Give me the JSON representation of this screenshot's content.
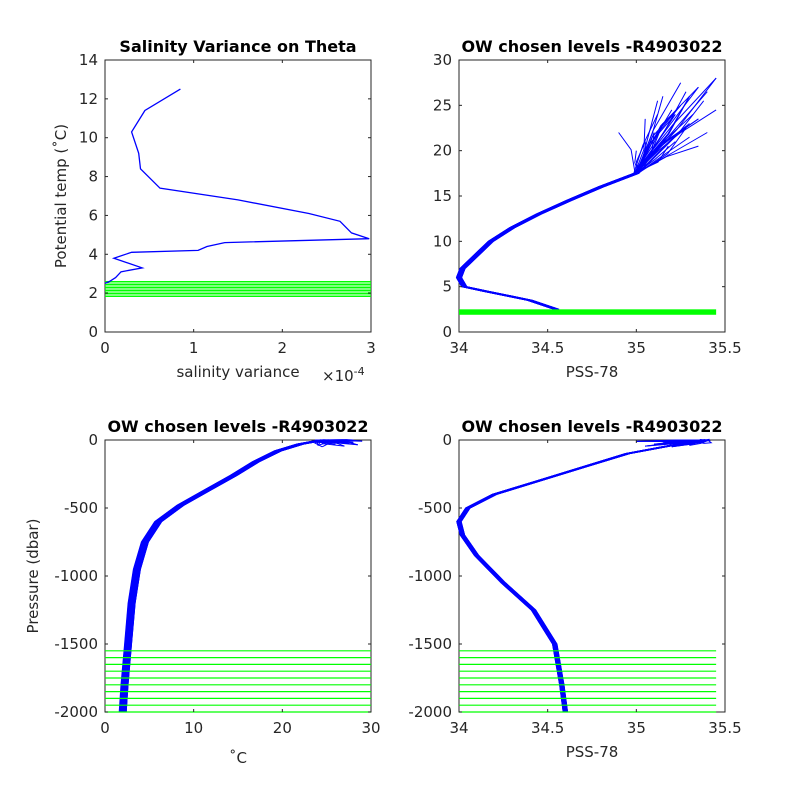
{
  "chart_data": [
    {
      "type": "line",
      "title": "Salinity Variance on Theta",
      "xlabel": "salinity variance",
      "ylabel": "Potential temp (˚C)",
      "x_exponent_label": "×10",
      "x_exponent": "-4",
      "xlim": [
        0,
        3
      ],
      "ylim": [
        0,
        14
      ],
      "xticks": [
        "0",
        "1",
        "2",
        "3"
      ],
      "yticks": [
        "0",
        "2",
        "4",
        "6",
        "8",
        "10",
        "12",
        "14"
      ],
      "series": [
        {
          "color": "#0000ff",
          "points": [
            [
              0.85,
              12.5
            ],
            [
              0.45,
              11.4
            ],
            [
              0.3,
              10.3
            ],
            [
              0.38,
              9.2
            ],
            [
              0.4,
              8.4
            ],
            [
              0.62,
              7.4
            ],
            [
              1.5,
              6.8
            ],
            [
              2.3,
              6.1
            ],
            [
              2.65,
              5.7
            ],
            [
              2.78,
              5.1
            ],
            [
              2.98,
              4.8
            ],
            [
              1.35,
              4.6
            ],
            [
              1.15,
              4.4
            ],
            [
              1.05,
              4.2
            ],
            [
              0.3,
              4.1
            ],
            [
              0.1,
              3.8
            ],
            [
              0.42,
              3.3
            ],
            [
              0.18,
              3.1
            ],
            [
              0.12,
              2.8
            ],
            [
              0.05,
              2.6
            ],
            [
              0.0,
              2.5
            ]
          ]
        }
      ],
      "highlight_band": {
        "color": "#00ff00",
        "y_from": 1.8,
        "y_to": 2.6,
        "x_to": 3.0
      }
    },
    {
      "type": "line",
      "title": "OW chosen levels -R4903022",
      "xlabel": "PSS-78",
      "ylabel": "",
      "xlim": [
        34,
        35.5
      ],
      "ylim": [
        0,
        30
      ],
      "xticks": [
        "34",
        "34.5",
        "35",
        "35.5"
      ],
      "yticks": [
        "0",
        "5",
        "10",
        "15",
        "20",
        "25",
        "30"
      ],
      "profile_color": "#0000ff",
      "base_profile": [
        [
          34.55,
          2.5
        ],
        [
          34.4,
          3.5
        ],
        [
          34.15,
          4.5
        ],
        [
          34.03,
          5.0
        ],
        [
          34.0,
          6.0
        ],
        [
          34.02,
          7.0
        ],
        [
          34.1,
          8.5
        ],
        [
          34.18,
          10.0
        ],
        [
          34.3,
          11.5
        ],
        [
          34.45,
          13.0
        ],
        [
          34.62,
          14.5
        ],
        [
          34.8,
          16.0
        ],
        [
          35.0,
          17.5
        ]
      ],
      "spread_tops": [
        [
          35.45,
          28.0
        ],
        [
          35.35,
          27.0
        ],
        [
          35.3,
          26.0
        ],
        [
          35.25,
          25.0
        ],
        [
          35.22,
          24.0
        ],
        [
          35.15,
          23.0
        ],
        [
          35.1,
          22.0
        ],
        [
          35.05,
          21.0
        ],
        [
          35.35,
          23.5
        ],
        [
          35.28,
          22.5
        ],
        [
          35.2,
          24.5
        ],
        [
          35.12,
          25.5
        ],
        [
          35.4,
          26.5
        ],
        [
          35.3,
          21.5
        ],
        [
          35.18,
          20.5
        ],
        [
          35.08,
          19.5
        ],
        [
          35.32,
          24.0
        ],
        [
          35.25,
          27.5
        ],
        [
          35.4,
          22.0
        ],
        [
          35.15,
          26.0
        ],
        [
          35.0,
          20.0
        ],
        [
          35.35,
          20.5
        ],
        [
          35.22,
          21.0
        ],
        [
          35.05,
          23.5
        ],
        [
          34.9,
          22.0
        ],
        [
          35.38,
          25.5
        ],
        [
          35.28,
          26.5
        ],
        [
          35.12,
          24.0
        ],
        [
          35.3,
          23.0
        ],
        [
          35.45,
          24.5
        ]
      ],
      "levels": [
        {
          "color": "#00ff00",
          "y": 2.2,
          "x_from": 34.0,
          "x_to": 35.45,
          "width_data": 0.6
        }
      ]
    },
    {
      "type": "line",
      "title": "OW chosen levels -R4903022",
      "xlabel": "˚C",
      "ylabel": "Pressure (dbar)",
      "xlim": [
        0,
        30
      ],
      "ylim": [
        -2000,
        0
      ],
      "xticks": [
        "0",
        "10",
        "20",
        "30"
      ],
      "yticks": [
        "-2000",
        "-1500",
        "-1000",
        "-500",
        "0"
      ],
      "profile_color": "#0000ff",
      "base_profile": [
        [
          2.0,
          -2000
        ],
        [
          2.2,
          -1800
        ],
        [
          2.6,
          -1500
        ],
        [
          3.0,
          -1200
        ],
        [
          3.6,
          -950
        ],
        [
          4.5,
          -750
        ],
        [
          6.0,
          -600
        ],
        [
          8.5,
          -480
        ],
        [
          11.5,
          -370
        ],
        [
          14.5,
          -260
        ],
        [
          17.0,
          -160
        ],
        [
          19.5,
          -80
        ],
        [
          22.0,
          -30
        ],
        [
          24.5,
          0
        ]
      ],
      "spread_tops": [
        [
          28.0,
          0
        ],
        [
          27.0,
          -10
        ],
        [
          26.0,
          -5
        ],
        [
          25.5,
          -20
        ],
        [
          29.0,
          -8
        ],
        [
          27.5,
          -25
        ],
        [
          26.5,
          -15
        ],
        [
          24.0,
          -40
        ],
        [
          28.5,
          -35
        ],
        [
          25.0,
          -12
        ],
        [
          27.0,
          -45
        ],
        [
          26.0,
          -30
        ],
        [
          23.5,
          -20
        ],
        [
          28.0,
          -18
        ],
        [
          24.5,
          -50
        ]
      ],
      "levels_color": "#00ff00",
      "levels": [
        -1550,
        -1600,
        -1650,
        -1700,
        -1750,
        -1800,
        -1850,
        -1900,
        -1950,
        -2000
      ],
      "levels_x_to": 30.0
    },
    {
      "type": "line",
      "title": "OW chosen levels -R4903022",
      "xlabel": "PSS-78",
      "ylabel": "",
      "xlim": [
        34,
        35.5
      ],
      "ylim": [
        -2000,
        0
      ],
      "xticks": [
        "34",
        "34.5",
        "35",
        "35.5"
      ],
      "yticks": [
        "-2000",
        "-1500",
        "-1000",
        "-500",
        "0"
      ],
      "profile_color": "#0000ff",
      "base_profile": [
        [
          34.6,
          -2000
        ],
        [
          34.58,
          -1800
        ],
        [
          34.54,
          -1500
        ],
        [
          34.42,
          -1250
        ],
        [
          34.25,
          -1050
        ],
        [
          34.1,
          -850
        ],
        [
          34.02,
          -700
        ],
        [
          34.0,
          -600
        ],
        [
          34.05,
          -500
        ],
        [
          34.2,
          -400
        ],
        [
          34.45,
          -300
        ],
        [
          34.7,
          -200
        ],
        [
          34.95,
          -100
        ],
        [
          35.2,
          -40
        ],
        [
          35.4,
          0
        ]
      ],
      "spread_tops": [
        [
          35.4,
          0
        ],
        [
          35.3,
          -10
        ],
        [
          35.2,
          -20
        ],
        [
          35.1,
          -30
        ],
        [
          35.35,
          -5
        ],
        [
          35.25,
          -35
        ],
        [
          35.15,
          -15
        ],
        [
          35.05,
          -45
        ],
        [
          35.38,
          -25
        ],
        [
          35.0,
          -10
        ],
        [
          35.2,
          -50
        ],
        [
          35.3,
          -40
        ],
        [
          35.1,
          -5
        ]
      ],
      "levels_color": "#00ff00",
      "levels": [
        -1550,
        -1600,
        -1650,
        -1700,
        -1750,
        -1800,
        -1850,
        -1900,
        -1950,
        -2000
      ],
      "levels_x_to": 35.45
    }
  ]
}
